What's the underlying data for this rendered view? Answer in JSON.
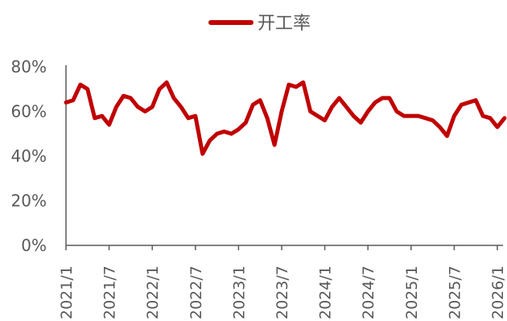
{
  "chart_data": {
    "type": "line",
    "title": "",
    "xlabel": "",
    "ylabel": "",
    "ylim": [
      0,
      80
    ],
    "y_ticks": [
      "0%",
      "20%",
      "40%",
      "60%",
      "80%"
    ],
    "x_ticks": [
      "2021/1",
      "2021/7",
      "2022/1",
      "2022/7",
      "2023/1",
      "2023/7",
      "2024/1",
      "2024/7",
      "2025/1",
      "2025/7",
      "2026/1"
    ],
    "grid": false,
    "legend": "top-center",
    "series": [
      {
        "name": "开工率",
        "color": "#C00000",
        "x": [
          "2021/1",
          "2021/2",
          "2021/3",
          "2021/4",
          "2021/5",
          "2021/6",
          "2021/7",
          "2021/8",
          "2021/9",
          "2021/10",
          "2021/11",
          "2021/12",
          "2022/1",
          "2022/2",
          "2022/3",
          "2022/4",
          "2022/5",
          "2022/6",
          "2022/7",
          "2022/8",
          "2022/9",
          "2022/10",
          "2022/11",
          "2022/12",
          "2023/1",
          "2023/2",
          "2023/3",
          "2023/4",
          "2023/5",
          "2023/6",
          "2023/7",
          "2023/8",
          "2023/9",
          "2023/10",
          "2023/11",
          "2023/12",
          "2024/1",
          "2024/2",
          "2024/3",
          "2024/4",
          "2024/5",
          "2024/6",
          "2024/7",
          "2024/8",
          "2024/9",
          "2024/10",
          "2024/11",
          "2024/12",
          "2025/1",
          "2025/2",
          "2025/3",
          "2025/4",
          "2025/5",
          "2025/6",
          "2025/7",
          "2025/8",
          "2025/9",
          "2025/10",
          "2025/11",
          "2025/12",
          "2026/1",
          "2026/2"
        ],
        "values": [
          64,
          65,
          72,
          70,
          57,
          58,
          54,
          62,
          67,
          66,
          62,
          60,
          62,
          70,
          73,
          66,
          62,
          57,
          58,
          41,
          47,
          50,
          51,
          50,
          52,
          55,
          63,
          65,
          57,
          45,
          60,
          72,
          71,
          73,
          60,
          58,
          56,
          62,
          66,
          62,
          58,
          55,
          60,
          64,
          66,
          66,
          60,
          58,
          58,
          58,
          57,
          56,
          53,
          49,
          58,
          63,
          64,
          65,
          58,
          57,
          53,
          57
        ]
      }
    ]
  }
}
